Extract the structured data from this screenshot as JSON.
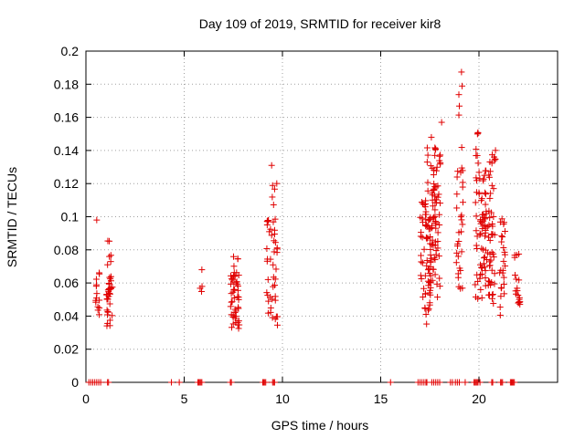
{
  "chart_data": {
    "type": "scatter",
    "title": "Day 109 of 2019, SRMTID for receiver kir8",
    "xlabel": "GPS time / hours",
    "ylabel": "SRMTID / TECUs",
    "xlim": [
      0,
      24
    ],
    "ylim": [
      0,
      0.2
    ],
    "xticks": [
      0,
      5,
      10,
      15,
      20
    ],
    "xtick_labels": [
      "0",
      "5",
      "10",
      "15",
      "20"
    ],
    "yticks": [
      0,
      0.02,
      0.04,
      0.06,
      0.08,
      0.1,
      0.12,
      0.14,
      0.16,
      0.18,
      0.2
    ],
    "ytick_labels": [
      "0",
      "0.02",
      "0.04",
      "0.06",
      "0.08",
      "0.1",
      "0.12",
      "0.14",
      "0.16",
      "0.18",
      "0.2"
    ],
    "grid": true,
    "marker": "+",
    "color": "#e00000",
    "series": [
      {
        "name": "SRMTID",
        "clusters": [
          {
            "x": [
              0.5,
              0.7
            ],
            "y": [
              0.036,
              0.067
            ],
            "n": 14
          },
          {
            "x": 0.55,
            "y": [
              0.098,
              0.098
            ],
            "n": 1
          },
          {
            "x": [
              1.05,
              1.35
            ],
            "y": [
              0.034,
              0.064
            ],
            "n": 32
          },
          {
            "x": [
              1.1,
              1.3
            ],
            "y": [
              0.07,
              0.086
            ],
            "n": 6
          },
          {
            "x": [
              5.8,
              5.95
            ],
            "y": [
              0.054,
              0.058
            ],
            "n": 3
          },
          {
            "x": 5.9,
            "y": [
              0.068,
              0.068
            ],
            "n": 1
          },
          {
            "x": [
              7.35,
              7.8
            ],
            "y": [
              0.032,
              0.068
            ],
            "n": 45
          },
          {
            "x": [
              7.5,
              7.8
            ],
            "y": [
              0.069,
              0.076
            ],
            "n": 4
          },
          {
            "x": [
              9.2,
              9.75
            ],
            "y": [
              0.034,
              0.1
            ],
            "n": 45
          },
          {
            "x": [
              9.45,
              9.75
            ],
            "y": [
              0.105,
              0.121
            ],
            "n": 5
          },
          {
            "x": 9.45,
            "y": [
              0.131,
              0.131
            ],
            "n": 1
          },
          {
            "x": [
              17.0,
              17.55
            ],
            "y": [
              0.035,
              0.11
            ],
            "n": 60
          },
          {
            "x": [
              17.35,
              17.85
            ],
            "y": [
              0.06,
              0.15
            ],
            "n": 45
          },
          {
            "x": [
              17.6,
              18.05
            ],
            "y": [
              0.05,
              0.14
            ],
            "n": 40
          },
          {
            "x": 18.1,
            "y": [
              0.157,
              0.157
            ],
            "n": 1
          },
          {
            "x": [
              18.85,
              19.2
            ],
            "y": [
              0.055,
              0.13
            ],
            "n": 30
          },
          {
            "x": [
              18.95,
              19.15
            ],
            "y": [
              0.14,
              0.19
            ],
            "n": 6
          },
          {
            "x": [
              19.8,
              20.35
            ],
            "y": [
              0.05,
              0.125
            ],
            "n": 55
          },
          {
            "x": [
              19.85,
              20.1
            ],
            "y": [
              0.125,
              0.152
            ],
            "n": 8
          },
          {
            "x": [
              20.3,
              20.8
            ],
            "y": [
              0.045,
              0.13
            ],
            "n": 55
          },
          {
            "x": [
              20.55,
              20.85
            ],
            "y": [
              0.12,
              0.147
            ],
            "n": 9
          },
          {
            "x": [
              21.05,
              21.35
            ],
            "y": [
              0.039,
              0.1
            ],
            "n": 25
          },
          {
            "x": [
              21.8,
              22.1
            ],
            "y": [
              0.047,
              0.08
            ],
            "n": 20
          }
        ],
        "zero_x": [
          0.15,
          0.25,
          0.35,
          0.45,
          0.55,
          0.65,
          0.75,
          1.1,
          1.15,
          4.35,
          4.75,
          5.7,
          5.75,
          5.8,
          5.85,
          5.9,
          7.35,
          7.4,
          9.0,
          9.05,
          9.1,
          9.15,
          9.5,
          9.55,
          9.6,
          15.5,
          16.9,
          17.0,
          17.1,
          17.2,
          17.3,
          17.35,
          17.6,
          17.7,
          17.8,
          17.9,
          18.0,
          18.55,
          18.65,
          18.8,
          18.9,
          19.0,
          19.3,
          19.75,
          19.8,
          19.85,
          19.9,
          19.95,
          20.05,
          20.65,
          20.7,
          21.1,
          21.15,
          21.2,
          21.6,
          21.65,
          21.7,
          21.75,
          21.8
        ]
      }
    ]
  }
}
